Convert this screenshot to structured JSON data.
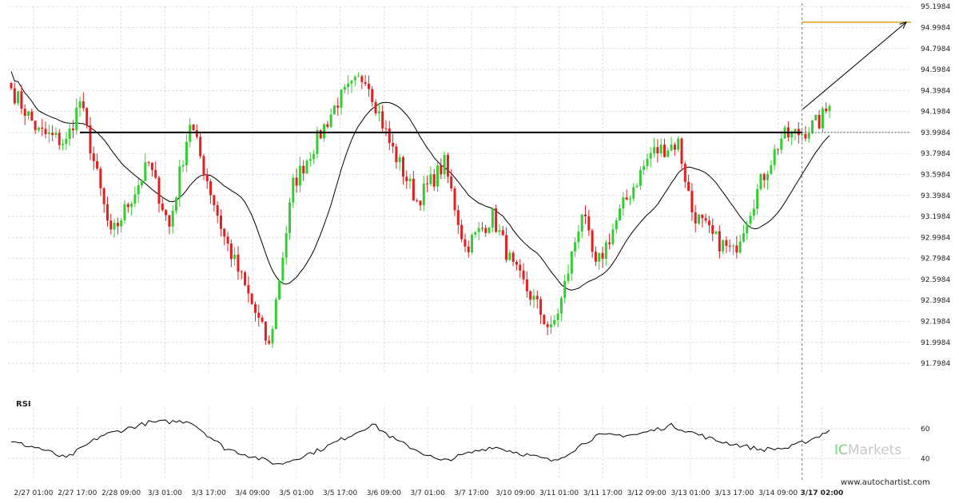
{
  "chart_data": {
    "type": "candlestick",
    "price_axis": {
      "ylim": [
        91.7,
        95.2
      ],
      "ticks": [
        95.1984,
        94.9984,
        94.7984,
        94.5984,
        94.3984,
        94.1984,
        93.9984,
        93.7984,
        93.5984,
        93.3984,
        93.1984,
        92.9984,
        92.7984,
        92.5984,
        92.3984,
        92.1984,
        91.9984,
        91.7984
      ],
      "tick_labels": [
        "95.1984",
        "94.9984",
        "94.7984",
        "94.5984",
        "94.3984",
        "94.1984",
        "93.9984",
        "93.7984",
        "93.5984",
        "93.3984",
        "93.1984",
        "92.9984",
        "92.7984",
        "92.5984",
        "92.3984",
        "92.1984",
        "91.9984",
        "91.7984"
      ]
    },
    "x_axis": {
      "tick_labels": [
        "2/27 01:00",
        "2/27 17:00",
        "2/28 09:00",
        "3/3 01:00",
        "3/3 17:00",
        "3/4 09:00",
        "3/5 01:00",
        "3/5 17:00",
        "3/6 09:00",
        "3/7 01:00",
        "3/7 17:00",
        "3/10 09:00",
        "3/11 01:00",
        "3/11 17:00",
        "3/12 09:00",
        "3/13 01:00",
        "3/13 17:00",
        "3/14 09:00",
        "3/17 02:00"
      ],
      "highlighted_label": "3/17 02:00"
    },
    "key_points": [
      {
        "bar": 0,
        "close": 94.42
      },
      {
        "bar": 8,
        "close": 94.0
      },
      {
        "bar": 16,
        "close": 93.9
      },
      {
        "bar": 20,
        "close": 94.3
      },
      {
        "bar": 29,
        "close": 93.0
      },
      {
        "bar": 40,
        "close": 93.7
      },
      {
        "bar": 46,
        "close": 93.1
      },
      {
        "bar": 52,
        "close": 94.1
      },
      {
        "bar": 62,
        "close": 93.0
      },
      {
        "bar": 72,
        "close": 92.2
      },
      {
        "bar": 75,
        "close": 91.95
      },
      {
        "bar": 82,
        "close": 93.5
      },
      {
        "bar": 95,
        "close": 94.3
      },
      {
        "bar": 103,
        "close": 94.55
      },
      {
        "bar": 110,
        "close": 93.9
      },
      {
        "bar": 118,
        "close": 93.35
      },
      {
        "bar": 126,
        "close": 93.7
      },
      {
        "bar": 132,
        "close": 92.9
      },
      {
        "bar": 140,
        "close": 93.2
      },
      {
        "bar": 146,
        "close": 92.7
      },
      {
        "bar": 152,
        "close": 92.4
      },
      {
        "bar": 157,
        "close": 92.1
      },
      {
        "bar": 160,
        "close": 92.4
      },
      {
        "bar": 166,
        "close": 93.25
      },
      {
        "bar": 170,
        "close": 92.7
      },
      {
        "bar": 178,
        "close": 93.3
      },
      {
        "bar": 186,
        "close": 93.8
      },
      {
        "bar": 194,
        "close": 93.9
      },
      {
        "bar": 198,
        "close": 93.25
      },
      {
        "bar": 204,
        "close": 93.0
      },
      {
        "bar": 210,
        "close": 92.85
      },
      {
        "bar": 214,
        "close": 93.2
      },
      {
        "bar": 219,
        "close": 93.6
      },
      {
        "bar": 224,
        "close": 93.95
      },
      {
        "bar": 230,
        "close": 94.0
      },
      {
        "bar": 235,
        "close": 94.1
      },
      {
        "bar": 238,
        "close": 94.25
      }
    ],
    "bar_count": 239,
    "support_line": {
      "value": 93.9984,
      "from_bar": 20,
      "to_bar": 230
    },
    "target_level": {
      "value": 95.05
    },
    "forecast_arrow": {
      "from_value": 94.22,
      "to_value": 95.05
    },
    "current_bar": 230,
    "moving_average": {
      "period": 20
    },
    "rsi": {
      "label": "RSI",
      "ylim": [
        30,
        70
      ],
      "ticks": [
        60,
        40
      ],
      "tick_labels": [
        "60",
        "40"
      ],
      "key_points": [
        {
          "bar": 0,
          "value": 51
        },
        {
          "bar": 8,
          "value": 47
        },
        {
          "bar": 16,
          "value": 40
        },
        {
          "bar": 26,
          "value": 55
        },
        {
          "bar": 40,
          "value": 64
        },
        {
          "bar": 52,
          "value": 65
        },
        {
          "bar": 62,
          "value": 47
        },
        {
          "bar": 72,
          "value": 40
        },
        {
          "bar": 78,
          "value": 36
        },
        {
          "bar": 90,
          "value": 46
        },
        {
          "bar": 100,
          "value": 57
        },
        {
          "bar": 105,
          "value": 63
        },
        {
          "bar": 112,
          "value": 52
        },
        {
          "bar": 125,
          "value": 38
        },
        {
          "bar": 140,
          "value": 48
        },
        {
          "bar": 158,
          "value": 38
        },
        {
          "bar": 170,
          "value": 55
        },
        {
          "bar": 182,
          "value": 56
        },
        {
          "bar": 192,
          "value": 62
        },
        {
          "bar": 205,
          "value": 52
        },
        {
          "bar": 218,
          "value": 46
        },
        {
          "bar": 226,
          "value": 47
        },
        {
          "bar": 234,
          "value": 54
        },
        {
          "bar": 238,
          "value": 59
        }
      ]
    }
  },
  "branding": {
    "logo_text_prefix": "IC",
    "logo_text_suffix": "Markets",
    "website": "www.autochartist.com"
  },
  "colors": {
    "bull": "#33cc33",
    "bear": "#e02020",
    "grid": "#e0e0e0",
    "support": "#000000",
    "target": "#d4a017",
    "ma": "#000000",
    "logo_gray": "#c8c8c8",
    "logo_green": "#7ed07e"
  }
}
